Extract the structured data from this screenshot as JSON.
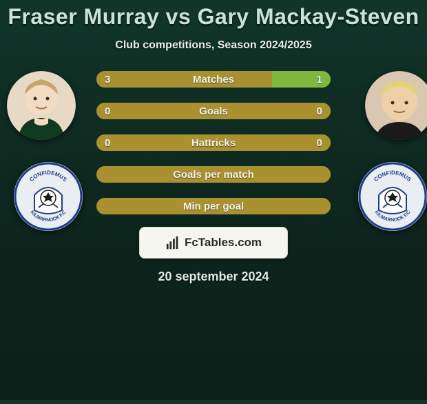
{
  "title": {
    "text": "Fraser Murray vs Gary Mackay-Steven",
    "color": "#cbe2d8",
    "fontsize": 32
  },
  "subtitle": {
    "text": "Club competitions, Season 2024/2025",
    "color": "#e7efe9",
    "fontsize": 16
  },
  "date": {
    "text": "20 september 2024",
    "color": "#dfeae3",
    "fontsize": 18
  },
  "colors": {
    "bar_track": "#a99030",
    "bar_left_fill": "#a99030",
    "bar_right_fill": "#7fb83f",
    "bar_label_text": "#eef3e8",
    "value_text": "#eef3e8",
    "branding_bg": "#f6f6f1",
    "branding_border": "#d9d7c8",
    "branding_text": "#2a2a2a",
    "avatar_bg": "#e8d9c6",
    "club_bg": "#e8eef1"
  },
  "bars": [
    {
      "label": "Matches",
      "left_value": "3",
      "right_value": "1",
      "left_pct": 75,
      "right_pct": 25,
      "show_values": true
    },
    {
      "label": "Goals",
      "left_value": "0",
      "right_value": "0",
      "left_pct": 100,
      "right_pct": 0,
      "show_values": true
    },
    {
      "label": "Hattricks",
      "left_value": "0",
      "right_value": "0",
      "left_pct": 100,
      "right_pct": 0,
      "show_values": true
    },
    {
      "label": "Goals per match",
      "left_value": "",
      "right_value": "",
      "left_pct": 100,
      "right_pct": 0,
      "show_values": false
    },
    {
      "label": "Min per goal",
      "left_value": "",
      "right_value": "",
      "left_pct": 100,
      "right_pct": 0,
      "show_values": false
    }
  ],
  "bar_style": {
    "height": 24,
    "radius": 12,
    "label_fontsize": 15,
    "value_fontsize": 15
  },
  "branding": {
    "text": "FcTables.com",
    "fontsize": 17
  },
  "players": {
    "left": {
      "name": "Fraser Murray"
    },
    "right": {
      "name": "Gary Mackay-Steven"
    }
  },
  "clubs": {
    "left": {
      "name": "Kilmarnock FC",
      "motto": "CONFIDEMUS"
    },
    "right": {
      "name": "Kilmarnock FC",
      "motto": "CONFIDEMUS"
    }
  }
}
